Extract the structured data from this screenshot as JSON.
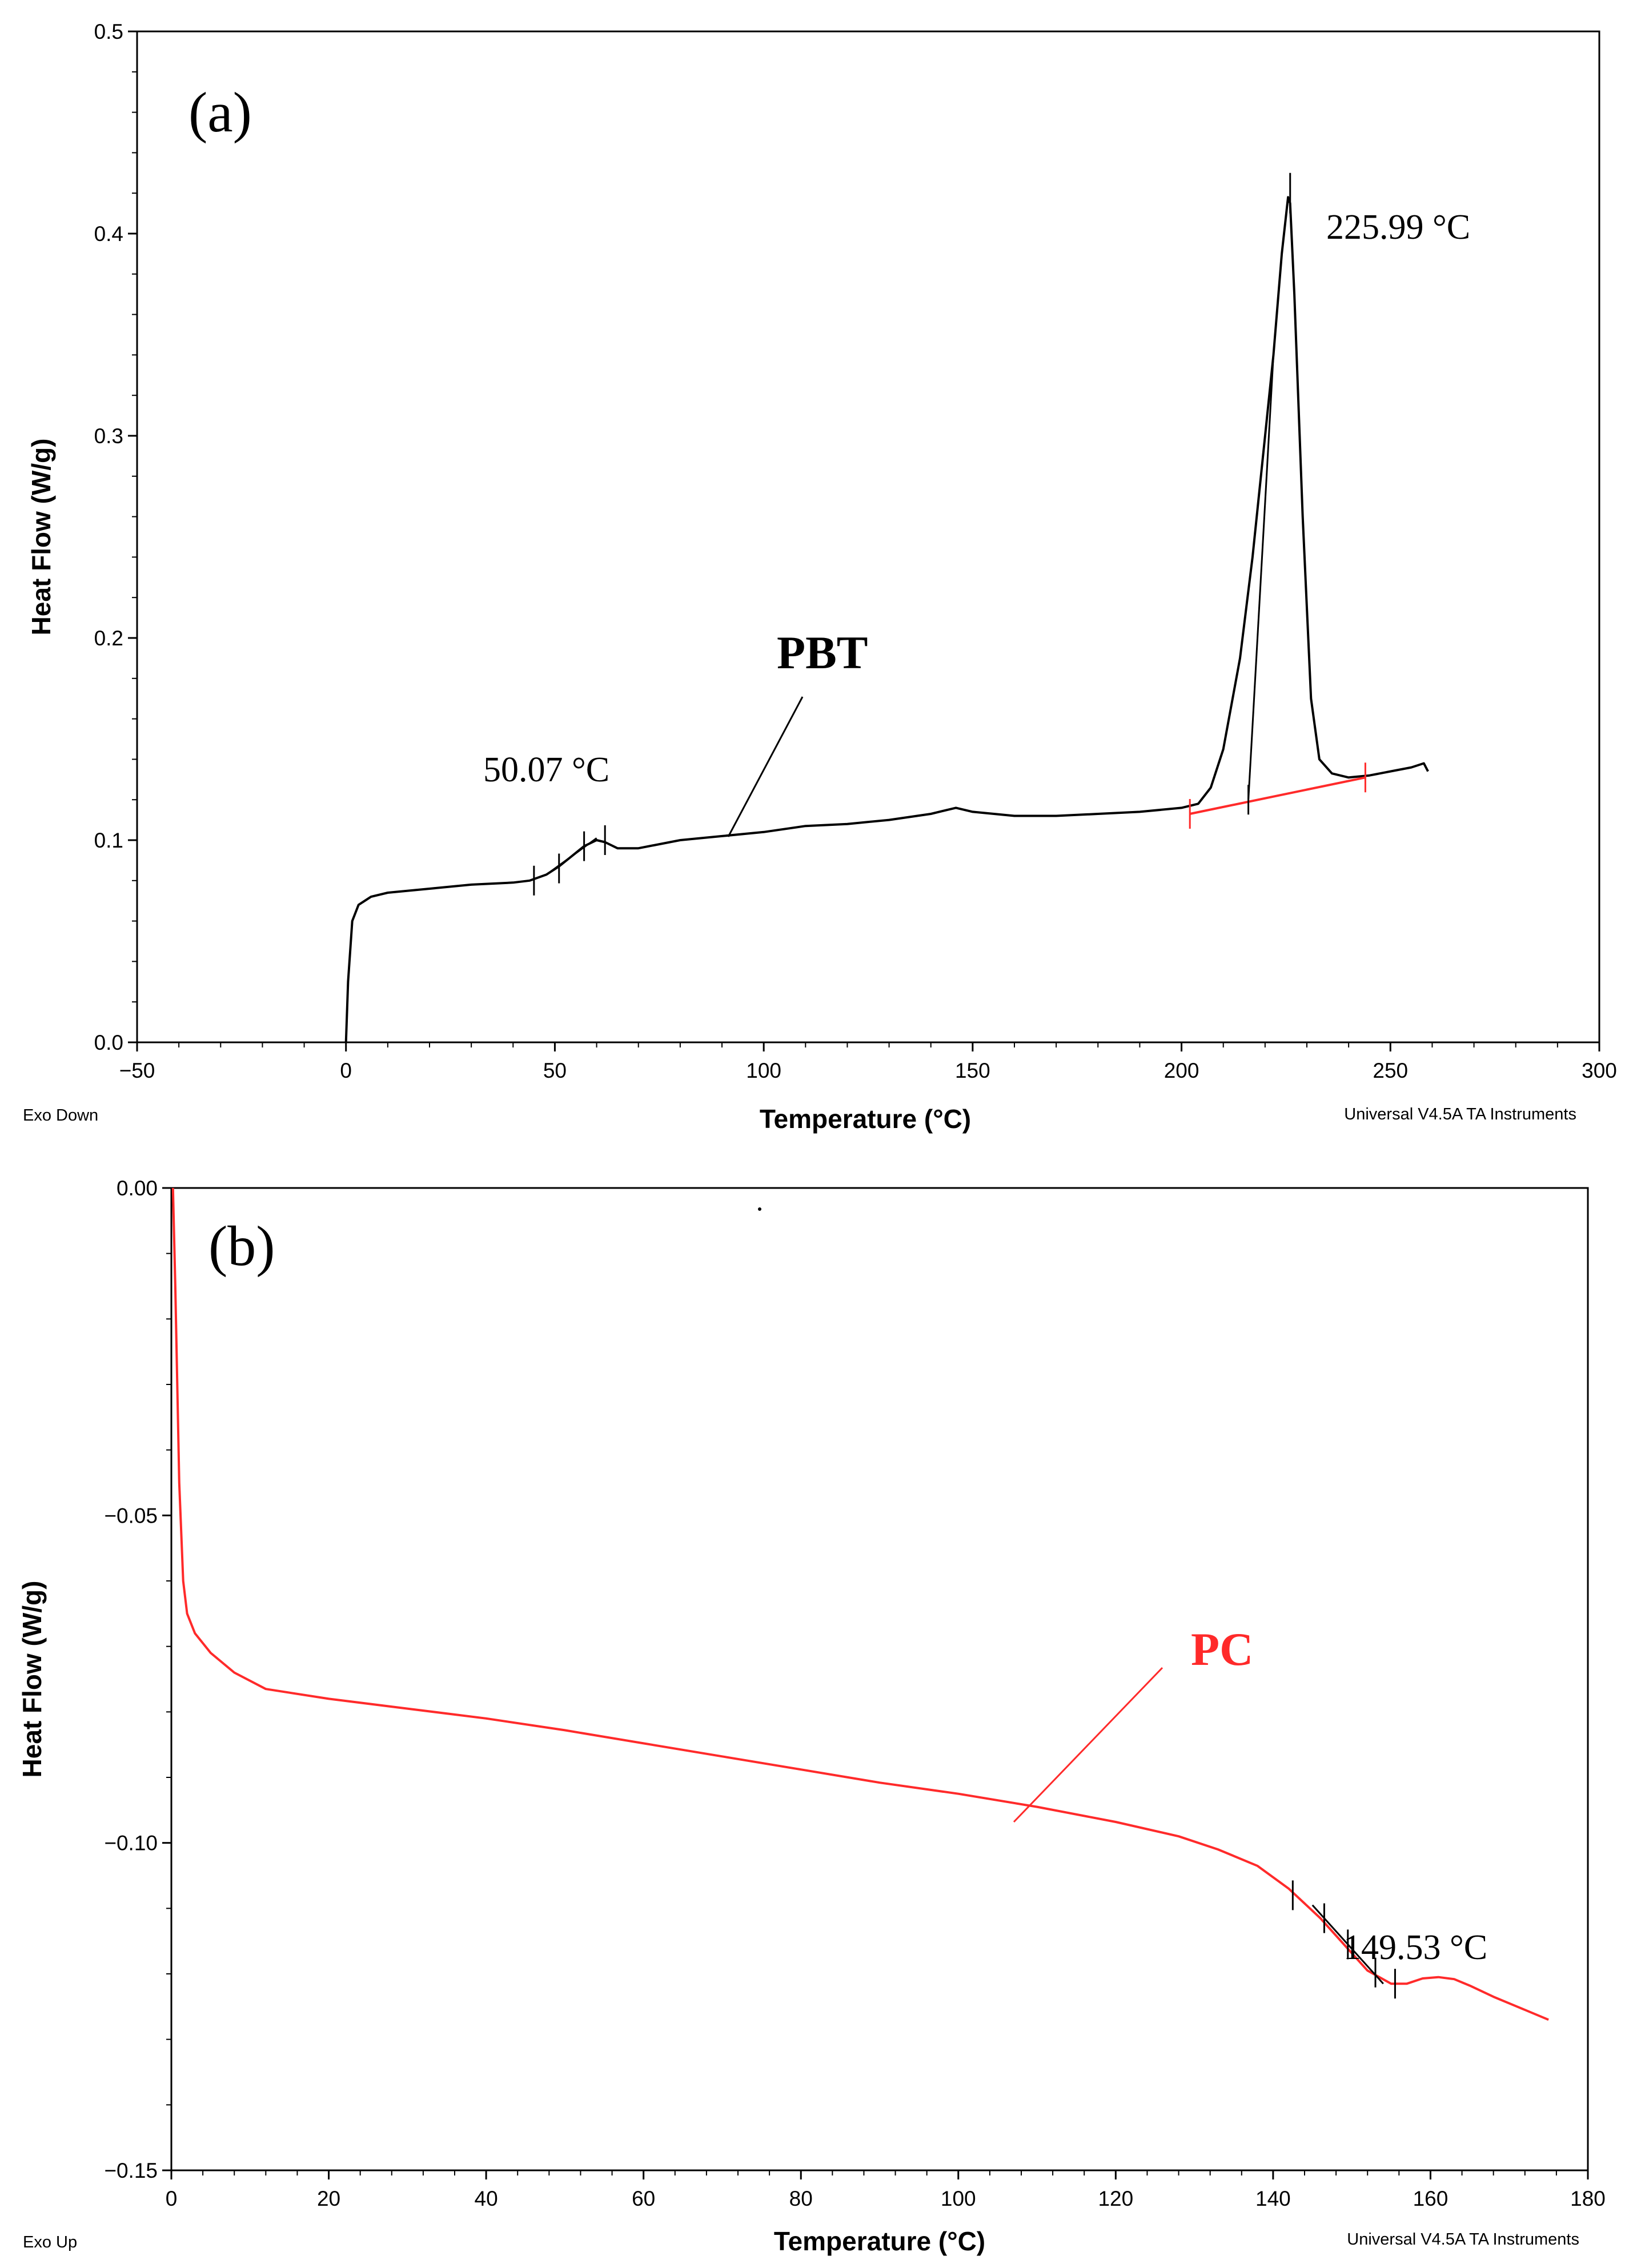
{
  "chart_data": [
    {
      "type": "line",
      "panel_label": "(a)",
      "xlabel": "Temperature (°C)",
      "ylabel": "Heat Flow (W/g)",
      "xlim": [
        -50,
        300
      ],
      "ylim": [
        0.0,
        0.5
      ],
      "x_ticks": [
        -50,
        0,
        50,
        100,
        150,
        200,
        250,
        300
      ],
      "y_ticks": [
        "0.0",
        "0.1",
        "0.2",
        "0.3",
        "0.4",
        "0.5"
      ],
      "corner_left": "Exo Down",
      "corner_right": "Universal V4.5A TA Instruments",
      "series": [
        {
          "name": "PBT",
          "color": "#000000",
          "x": [
            0,
            0.5,
            1.5,
            3,
            6,
            10,
            15,
            20,
            30,
            40,
            44,
            48,
            51,
            54,
            57,
            60,
            62,
            65,
            70,
            80,
            90,
            100,
            110,
            120,
            130,
            140,
            146,
            150,
            160,
            170,
            180,
            190,
            200,
            204,
            207,
            210,
            214,
            217,
            220,
            222,
            224,
            225.5,
            226,
            227,
            229,
            231,
            233,
            236,
            240,
            245,
            250,
            255,
            258,
            259
          ],
          "y": [
            0.0,
            0.03,
            0.06,
            0.068,
            0.072,
            0.074,
            0.075,
            0.076,
            0.078,
            0.079,
            0.08,
            0.083,
            0.087,
            0.092,
            0.097,
            0.1,
            0.099,
            0.096,
            0.096,
            0.1,
            0.102,
            0.104,
            0.107,
            0.108,
            0.11,
            0.113,
            0.116,
            0.114,
            0.112,
            0.112,
            0.113,
            0.114,
            0.116,
            0.118,
            0.126,
            0.145,
            0.19,
            0.24,
            0.3,
            0.34,
            0.39,
            0.418,
            0.415,
            0.37,
            0.26,
            0.17,
            0.14,
            0.133,
            0.131,
            0.132,
            0.134,
            0.136,
            0.138,
            0.134
          ]
        },
        {
          "name": "baseline",
          "color": "#ff2a2a",
          "x": [
            202,
            244
          ],
          "y": [
            0.113,
            0.131
          ]
        }
      ],
      "annotations": [
        {
          "text": "225.99 °C",
          "x": 226,
          "y": 0.418
        },
        {
          "text": "50.07 °C",
          "x": 50.07,
          "y": 0.09
        },
        {
          "text": "PBT",
          "x": 90,
          "y": 0.1
        }
      ]
    },
    {
      "type": "line",
      "panel_label": "(b)",
      "xlabel": "Temperature (°C)",
      "ylabel": "Heat Flow (W/g)",
      "xlim": [
        0,
        180
      ],
      "ylim": [
        -0.15,
        0.0
      ],
      "x_ticks": [
        0,
        20,
        40,
        60,
        80,
        100,
        120,
        140,
        160,
        180
      ],
      "y_ticks": [
        "0.00",
        "−0.05",
        "−0.10",
        "−0.15"
      ],
      "corner_left": "Exo Up",
      "corner_right": "Universal V4.5A TA Instruments",
      "series": [
        {
          "name": "PC",
          "color": "#ff2a2a",
          "x": [
            0.2,
            0.5,
            1,
            1.5,
            2,
            3,
            5,
            8,
            12,
            20,
            30,
            40,
            50,
            60,
            70,
            80,
            90,
            100,
            110,
            120,
            128,
            133,
            138,
            142,
            146,
            149,
            152,
            155,
            157,
            159,
            161,
            163,
            165,
            168,
            171,
            175
          ],
          "y": [
            0.0,
            -0.015,
            -0.045,
            -0.06,
            -0.065,
            -0.068,
            -0.071,
            -0.074,
            -0.0765,
            -0.078,
            -0.0795,
            -0.081,
            -0.0828,
            -0.0848,
            -0.0868,
            -0.0888,
            -0.0908,
            -0.0925,
            -0.0945,
            -0.0968,
            -0.099,
            -0.101,
            -0.1035,
            -0.107,
            -0.1115,
            -0.1155,
            -0.1195,
            -0.1215,
            -0.1215,
            -0.1207,
            -0.1205,
            -0.1208,
            -0.1218,
            -0.1235,
            -0.125,
            -0.127
          ]
        }
      ],
      "annotations": [
        {
          "text": "149.53 °C",
          "x": 149.53,
          "y": -0.116
        },
        {
          "text": "PC",
          "x": 106,
          "y": -0.0935
        }
      ]
    }
  ]
}
